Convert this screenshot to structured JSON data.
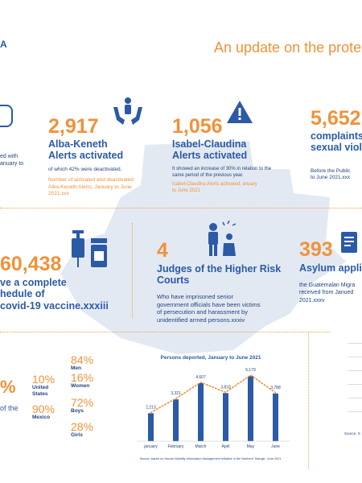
{
  "header": {
    "title": "An update on the protec",
    "corner": "A"
  },
  "col1": {
    "line1": "ed with",
    "line2": "anuary to"
  },
  "alba": {
    "number": "2,917",
    "title_line1": "Alba-Keneth",
    "title_line2": "Alerts activated",
    "desc": "of which 42% were deactivated.",
    "source_line1": "Number of activated and deactivated",
    "source_line2": "Alba-Keneth Alerts, January to June",
    "source_line3": "2021.xxv"
  },
  "isabel": {
    "number": "1,056",
    "title_line1": "Isabel-Claudina",
    "title_line2": "Alerts activated",
    "desc_line1": "It showed an increase of 30% in relation to the",
    "desc_line2": "same period of the previous year.",
    "source_line1": "Isabel-Claudina Alerts activated, anuary",
    "source_line2": "to June 2021"
  },
  "complaints": {
    "number": "5,652",
    "title_line1": "complaints",
    "title_line2": "sexual viole",
    "desc_line1": "Before the Public",
    "desc_line2": "to June 2021.xxx"
  },
  "vaccine": {
    "number": "60,438",
    "line1": "ve a complete",
    "line2": "hedule of",
    "line3": "covid-19 vaccine.xxxiii"
  },
  "judges": {
    "number": "4",
    "title_line1": "Judges of the Higher Risk",
    "title_line2": "Courts",
    "desc_line1": "Who have imprisoned senior",
    "desc_line2": "government officials have been victims",
    "desc_line3": "of persecution and harassment by",
    "desc_line4": "unidentified armed persons.xxxiv"
  },
  "asylum": {
    "number": "393",
    "title": "Asylum applic",
    "desc_line1": "the Guatemalan Migra",
    "desc_line2": "received from Janued",
    "desc_line3": "2021.xxxv"
  },
  "stats_left": {
    "pct": "%",
    "of_the": "of the"
  },
  "country_stats": [
    {
      "pct": "10%",
      "label_line1": "United",
      "label_line2": "States"
    },
    {
      "pct": "90%",
      "label_line1": "Mexico",
      "label_line2": ""
    }
  ],
  "demo_stats": [
    {
      "pct": "84%",
      "label": "Men"
    },
    {
      "pct": "16%",
      "label": "Women"
    },
    {
      "pct": "72%",
      "label": "Boys"
    },
    {
      "pct": "28%",
      "label": "Girls"
    }
  ],
  "right_source": "Source: S",
  "chart_data": {
    "type": "bar",
    "title": "Persons deported, January to June 2021",
    "categories": [
      "january",
      "February",
      "March",
      "April",
      "May",
      "June"
    ],
    "values": [
      2213,
      3321,
      4607,
      3818,
      5179,
      3788
    ],
    "value_labels": [
      "2,213",
      "3,321",
      "4,607",
      "3,818",
      "5,179",
      "3,788"
    ],
    "ylim": [
      0,
      5500
    ],
    "trend_line": true,
    "source": "Source: based on Human Mobility Information Management Initiative in the Northern Triangle, June 2021.",
    "colors": {
      "bar": "#2b5aa6",
      "trend": "#f0923a"
    }
  }
}
